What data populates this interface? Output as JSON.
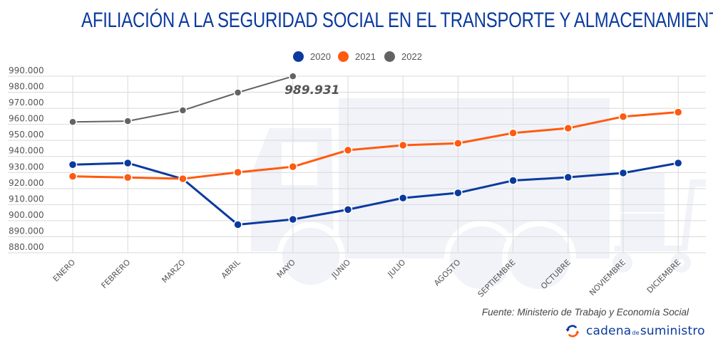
{
  "header": {
    "title": "AFILIACIÓN A LA SEGURIDAD SOCIAL EN EL TRANSPORTE Y ALMACENAMIENTO"
  },
  "footer": {
    "source": "Fuente: Ministerio de Trabajo y Economía Social",
    "brand_part1": "cadena",
    "brand_part2": "de",
    "brand_part3": "suministro",
    "brand_icon": "refresh-cycle-icon"
  },
  "colors": {
    "2020": "#0b3a9e",
    "2021": "#ff5a0f",
    "2022": "#636366",
    "title": "#0b3a9e",
    "grid": "#d9d9d9",
    "watermark": "#f1f3f9"
  },
  "chart_data": {
    "type": "line",
    "title": "AFILIACIÓN A LA SEGURIDAD SOCIAL EN EL TRANSPORTE Y ALMACENAMIENTO",
    "xlabel": "",
    "ylabel": "",
    "categories": [
      "ENERO",
      "FEBRERO",
      "MARZO",
      "ABRIL",
      "MAYO",
      "JUNIO",
      "JULIO",
      "AGOSTO",
      "SEPTIEMBRE",
      "OCTUBRE",
      "NOVIEMBRE",
      "DICIEMBRE"
    ],
    "ylim": [
      880000,
      990000
    ],
    "yticks": [
      880000,
      890000,
      900000,
      910000,
      920000,
      930000,
      940000,
      950000,
      960000,
      970000,
      980000,
      990000
    ],
    "ytick_labels": [
      "880.000",
      "890.000",
      "900.000",
      "910.000",
      "920.000",
      "930.000",
      "940.000",
      "950.000",
      "960.000",
      "970.000",
      "980.000",
      "990.000"
    ],
    "grid": true,
    "legend_position": "top-center",
    "series": [
      {
        "name": "2020",
        "values": [
          934900,
          935900,
          926000,
          897500,
          900800,
          906900,
          914100,
          917300,
          925000,
          927000,
          929700,
          935900
        ]
      },
      {
        "name": "2021",
        "values": [
          927600,
          926900,
          926100,
          930100,
          933600,
          943900,
          947000,
          948200,
          954600,
          957600,
          964800,
          967600
        ]
      },
      {
        "name": "2022",
        "values": [
          961500,
          962000,
          968700,
          979800,
          989931,
          null,
          null,
          null,
          null,
          null,
          null,
          null
        ]
      }
    ],
    "annotations": [
      {
        "series": "2022",
        "category": "MAYO",
        "text": "989.931"
      }
    ]
  }
}
